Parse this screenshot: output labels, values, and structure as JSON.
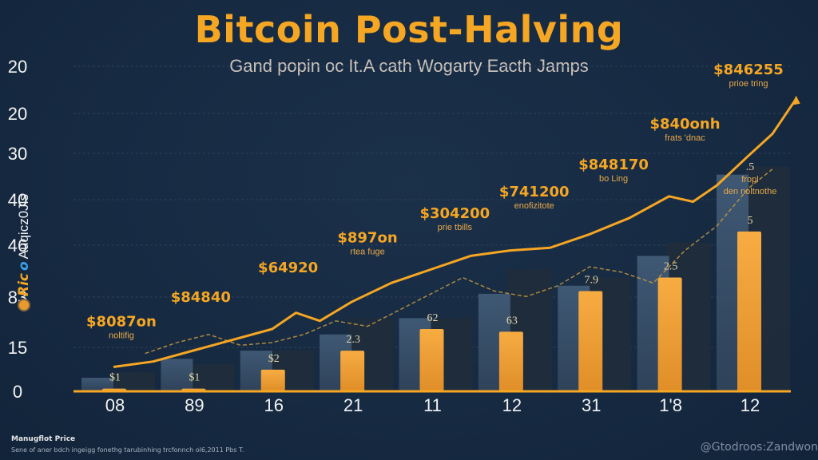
{
  "header": {
    "title": "Bitcoin Post-Halving",
    "subtitle": "Gand popin oc It.A cath Wogarty Eacth Jamps"
  },
  "brand": {
    "coin_icon": "bitcoin-coin-icon",
    "part1": "Ric",
    "part2": "o",
    "part3": "Auqicz0Jls"
  },
  "footer": {
    "title": "Manugflot Price",
    "note": "Sene of aner bdch ingeigg fonethg tarubinhing trcfonnch ol6,2011 Pbs T.",
    "watermark": "@Gtodroos:Zandwon"
  },
  "colors": {
    "background": "#162a42",
    "accent": "#f5a623",
    "bar_front": "#f0a33a",
    "bar_back_light": "#3e536b",
    "bar_back_dark": "#1f2c3b",
    "axis": "#f5a623"
  },
  "chart_data": {
    "type": "bar",
    "title": "Bitcoin Post-Halving",
    "subtitle": "Gand popin oc It.A cath Wogarty Eacth Jamps",
    "xlabel": "",
    "ylabel": "",
    "y_tick_labels": [
      "20",
      "20",
      "30",
      "40",
      "46",
      "83",
      "15",
      "0"
    ],
    "grid": true,
    "categories": [
      "08",
      "89",
      "16",
      "21",
      "11",
      "12",
      "31",
      "1'8",
      "12"
    ],
    "scale_max": 100,
    "series": [
      {
        "name": "back-light",
        "values": [
          5,
          12,
          15,
          21,
          27,
          36,
          39,
          50,
          80
        ]
      },
      {
        "name": "back-dark",
        "values": [
          7,
          10,
          15,
          27,
          27,
          45,
          42,
          55,
          83
        ]
      },
      {
        "name": "front",
        "values": [
          1,
          1,
          8,
          15,
          23,
          22,
          37,
          42,
          59
        ]
      }
    ],
    "bar_labels": [
      "$1",
      "$1",
      "$2",
      "2.3",
      "62",
      "63",
      "7.9",
      "2.5",
      "5"
    ],
    "line_series": {
      "name": "price-trend",
      "x": [
        0,
        0.5,
        1,
        1.5,
        2,
        2.3,
        2.6,
        3,
        3.5,
        4,
        4.5,
        5,
        5.5,
        6,
        6.5,
        7,
        7.3,
        7.6,
        8,
        8.3,
        8.6
      ],
      "values": [
        9,
        11,
        15,
        19,
        23,
        29,
        26,
        33,
        40,
        45,
        50,
        52,
        53,
        58,
        64,
        72,
        70,
        76,
        87,
        95,
        108
      ]
    },
    "dashed_series": {
      "name": "price-trend-dashed",
      "x": [
        0.4,
        0.8,
        1.2,
        1.6,
        2.0,
        2.4,
        2.8,
        3.2,
        3.6,
        4.0,
        4.4,
        4.8,
        5.2,
        5.6,
        6.0,
        6.4,
        6.8,
        7.2,
        7.6,
        8.0,
        8.3
      ],
      "values": [
        14,
        18,
        21,
        17,
        18,
        21,
        26,
        24,
        30,
        36,
        42,
        37,
        35,
        39,
        46,
        44,
        40,
        52,
        61,
        75,
        82
      ]
    },
    "annotations": [
      {
        "price": "$8087on",
        "sub": "noltifig",
        "x": 0.1,
        "y": 24
      },
      {
        "price": "$84840",
        "sub": "",
        "x": 1.1,
        "y": 33
      },
      {
        "price": "$64920",
        "sub": "",
        "x": 2.2,
        "y": 44
      },
      {
        "price": "$897on",
        "sub": "rtea fuge",
        "x": 3.2,
        "y": 55
      },
      {
        "price": "$304200",
        "sub": "prie tbills",
        "x": 4.3,
        "y": 64
      },
      {
        "price": "$741200",
        "sub": "enofizitote",
        "x": 5.3,
        "y": 72
      },
      {
        "price": "$848170",
        "sub": "bo Ling",
        "x": 6.3,
        "y": 82
      },
      {
        "price": "$840onh",
        "sub": "frats 'dnac",
        "x": 7.2,
        "y": 97
      },
      {
        "price": "$846255",
        "sub": "prioe tring",
        "x": 8.0,
        "y": 117
      }
    ],
    "extra_label": {
      "top": ".5",
      "sub1": "fropl",
      "sub2": "den noltnothe"
    }
  }
}
